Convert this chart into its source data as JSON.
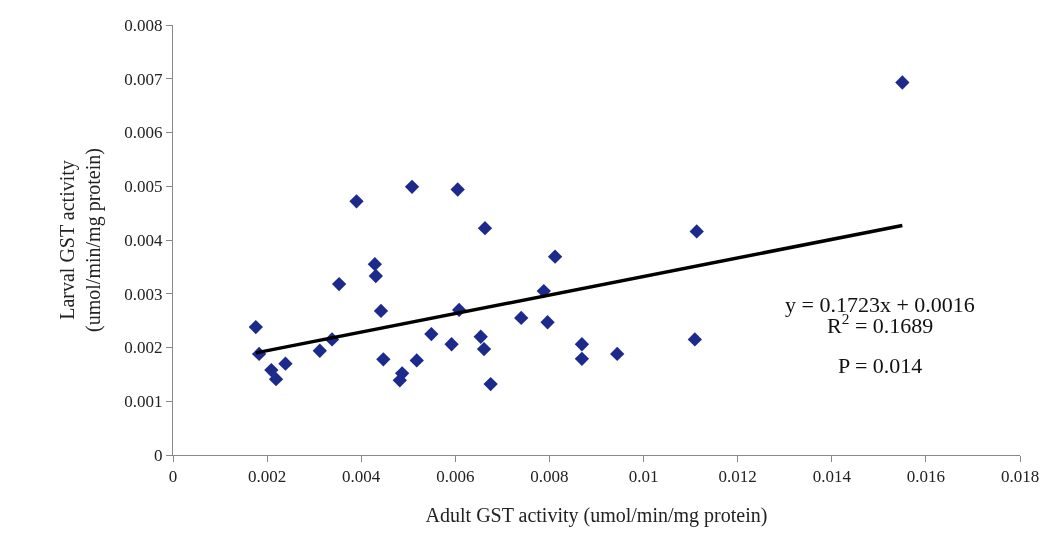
{
  "chart_data": {
    "type": "scatter",
    "xlabel": "Adult GST activity (umol/min/mg protein)",
    "ylabel": "Larval GST activity\n(umol/min/mg protein)",
    "xlim": [
      0,
      0.018
    ],
    "xticks": [
      0,
      0.002,
      0.004,
      0.006,
      0.008,
      0.01,
      0.012,
      0.014,
      0.016,
      0.018
    ],
    "ylim": [
      0,
      0.008
    ],
    "yticks": [
      0,
      0.001,
      0.002,
      0.003,
      0.004,
      0.005,
      0.006,
      0.007,
      0.008
    ],
    "marker": "diamond",
    "series": [
      {
        "color": "#1c2a8c",
        "x": [
          0.00176,
          0.00183,
          0.00209,
          0.00219,
          0.00239,
          0.00312,
          0.00338,
          0.00353,
          0.0039,
          0.00429,
          0.00431,
          0.00442,
          0.00447,
          0.00482,
          0.00487,
          0.00508,
          0.00518,
          0.00549,
          0.00592,
          0.00605,
          0.00608,
          0.00654,
          0.00661,
          0.00663,
          0.00675,
          0.0074,
          0.00788,
          0.00796,
          0.00812,
          0.00869,
          0.00869,
          0.00944,
          0.01109,
          0.01113,
          0.0155
        ],
        "values": [
          0.00238,
          0.00188,
          0.00158,
          0.00141,
          0.0017,
          0.00194,
          0.00215,
          0.00318,
          0.00472,
          0.00355,
          0.00333,
          0.00268,
          0.00178,
          0.00139,
          0.00152,
          0.00499,
          0.00176,
          0.00225,
          0.00206,
          0.00494,
          0.0027,
          0.0022,
          0.00197,
          0.00422,
          0.00132,
          0.00255,
          0.00305,
          0.00247,
          0.00369,
          0.00206,
          0.00179,
          0.00188,
          0.00215,
          0.00416,
          0.00693
        ]
      },
      {
        "type": "line",
        "color": "#000000",
        "line_style": "solid",
        "marker": "none",
        "x": [
          0.00176,
          0.0155
        ],
        "values": [
          0.0019,
          0.00427
        ]
      }
    ],
    "annotations": [
      "y = 0.1723x + 0.0016",
      "R$^{2}$ = 0.1689",
      "P = 0.014"
    ]
  }
}
